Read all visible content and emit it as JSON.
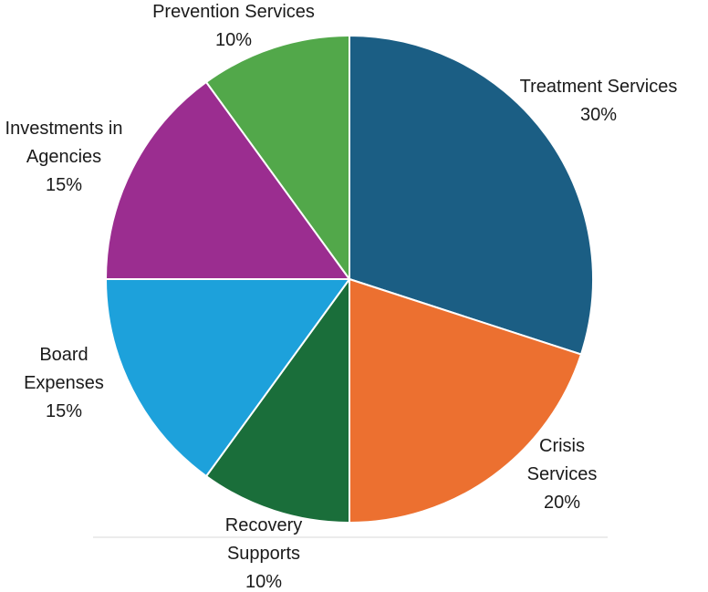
{
  "chart_data": {
    "type": "pie",
    "start_angle_deg": 0,
    "direction": "clockwise",
    "slices": [
      {
        "name": "slice-treatment-services",
        "label_lines": [
          "Treatment Services",
          "30%"
        ],
        "value": 30,
        "color": "#1b5e84"
      },
      {
        "name": "slice-crisis-services",
        "label_lines": [
          "Crisis",
          "Services",
          "20%"
        ],
        "value": 20,
        "color": "#ec7030"
      },
      {
        "name": "slice-recovery-supports",
        "label_lines": [
          "Recovery",
          "Supports",
          "10%"
        ],
        "value": 10,
        "color": "#1a6e3a"
      },
      {
        "name": "slice-board-expenses",
        "label_lines": [
          "Board",
          "Expenses",
          "15%"
        ],
        "value": 15,
        "color": "#1da1db"
      },
      {
        "name": "slice-investments-in-agencies",
        "label_lines": [
          "Investments in",
          "Agencies",
          "15%"
        ],
        "value": 15,
        "color": "#9b2d90"
      },
      {
        "name": "slice-prevention-services",
        "label_lines": [
          "Prevention Services",
          "10%"
        ],
        "value": 10,
        "color": "#52a84a"
      }
    ]
  }
}
